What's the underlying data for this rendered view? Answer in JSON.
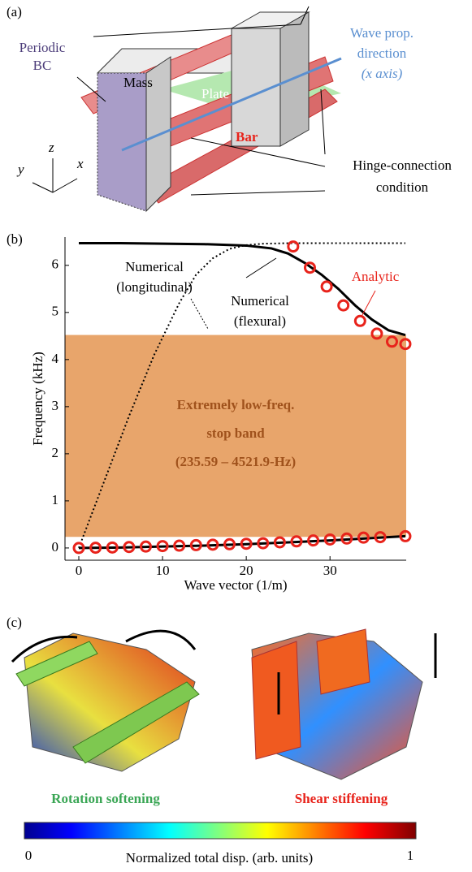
{
  "panel_a": {
    "label": "(a)",
    "periodic": [
      "Periodic",
      "BC"
    ],
    "mass": "Mass",
    "plate": "Plate",
    "bar": "Bar",
    "wave": [
      "Wave prop.",
      "direction",
      "(x axis)"
    ],
    "hinge": [
      "Hinge-connection",
      "condition"
    ],
    "axes": [
      "z",
      "y",
      "x"
    ]
  },
  "chart_data": {
    "type": "line",
    "panel_label": "(b)",
    "x_label": "Wave vector (1/m)",
    "y_label": "Frequency (kHz)",
    "xlim": [
      -1.65,
      39.1
    ],
    "ylim": [
      -0.26,
      6.6
    ],
    "xticks": [
      0,
      10,
      20,
      30
    ],
    "yticks": [
      0,
      1,
      2,
      3,
      4,
      5,
      6
    ],
    "grid": false,
    "stop_band": {
      "range": [
        0.23559,
        4.5219
      ],
      "color": "#e8a56b",
      "text": [
        "Extremely low-freq.",
        "stop band",
        "(235.59 – 4521.9-Hz)"
      ],
      "text_color": "#a0521c"
    },
    "annotations": [
      {
        "lines": [
          "Numerical",
          "(longitudinal)"
        ],
        "color": "#000000"
      },
      {
        "lines": [
          "Numerical",
          "(flexural)"
        ],
        "color": "#000000"
      },
      {
        "lines": [
          "Analytic"
        ],
        "color": "#e8231b"
      }
    ],
    "series": [
      {
        "style": "solid",
        "color": "#000000",
        "x": [
          0,
          5,
          10,
          15,
          20,
          23,
          25,
          27,
          29,
          31,
          33,
          35,
          37,
          39
        ],
        "values": [
          6.47,
          6.47,
          6.46,
          6.45,
          6.42,
          6.36,
          6.25,
          6.05,
          5.8,
          5.5,
          5.15,
          4.85,
          4.62,
          4.52
        ]
      },
      {
        "style": "solid",
        "color": "#000000",
        "x": [
          0,
          5,
          10,
          15,
          20,
          25,
          30,
          35,
          39
        ],
        "values": [
          0,
          0.01,
          0.03,
          0.05,
          0.08,
          0.12,
          0.16,
          0.21,
          0.25
        ]
      },
      {
        "style": "dotted",
        "color": "#000000",
        "x": [
          0,
          3,
          6,
          9,
          12,
          14,
          16,
          18,
          20,
          22,
          25,
          30,
          39
        ],
        "values": [
          0,
          1.4,
          2.8,
          4.1,
          5.2,
          5.8,
          6.15,
          6.35,
          6.43,
          6.46,
          6.47,
          6.47,
          6.47
        ]
      },
      {
        "style": "markers",
        "color": "#e8231b",
        "x": [
          25.6,
          27.6,
          29.6,
          31.6,
          33.6,
          35.6,
          37.4,
          39
        ],
        "values": [
          6.4,
          5.95,
          5.55,
          5.15,
          4.82,
          4.55,
          4.38,
          4.33
        ]
      },
      {
        "style": "markers",
        "color": "#e8231b",
        "x": [
          0,
          2,
          4,
          6,
          8,
          10,
          12,
          14,
          16,
          18,
          20,
          22,
          24,
          26,
          28,
          30,
          32,
          34,
          36,
          39
        ],
        "values": [
          0,
          0.005,
          0.01,
          0.02,
          0.03,
          0.04,
          0.05,
          0.06,
          0.07,
          0.08,
          0.09,
          0.1,
          0.12,
          0.14,
          0.16,
          0.18,
          0.2,
          0.22,
          0.23,
          0.25
        ]
      }
    ]
  },
  "panel_c": {
    "label": "(c)",
    "left": "Rotation softening",
    "right": "Shear stiffening",
    "colorbar": {
      "range": [
        0,
        1
      ],
      "label": "Normalized total disp. (arb. units)"
    }
  }
}
